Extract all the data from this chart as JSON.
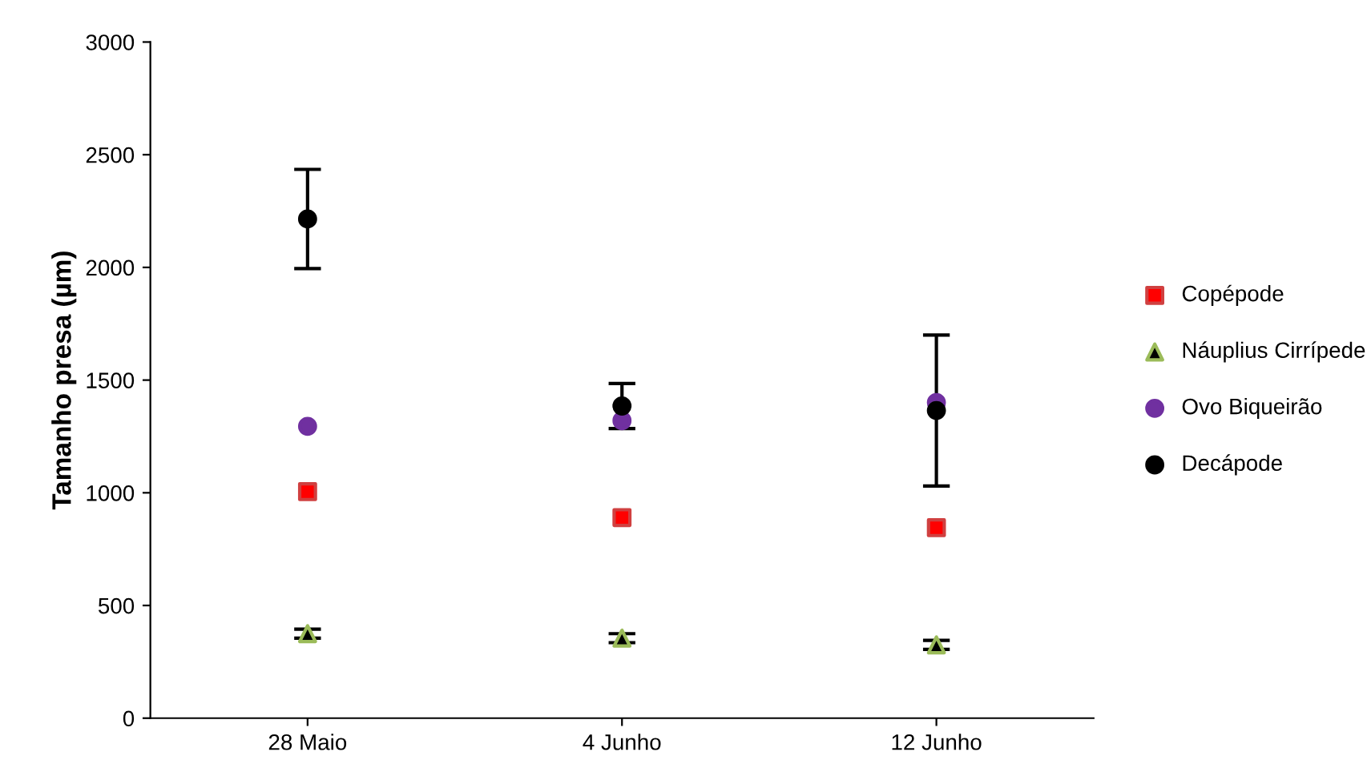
{
  "chart_data": {
    "type": "scatter",
    "ylabel": "Tamanho presa (µm)",
    "categories": [
      "28 Maio",
      "4 Junho",
      "12 Junho"
    ],
    "ylim": [
      0,
      3000
    ],
    "yticks": [
      0,
      500,
      1000,
      1500,
      2000,
      2500,
      3000
    ],
    "grid": false,
    "legend": "right",
    "series": [
      {
        "name": "Copépode",
        "color": "#ff0000",
        "marker": "square",
        "values": [
          1005,
          890,
          845
        ]
      },
      {
        "name": "Náuplius Cirrípede",
        "color": "#000000",
        "marker": "triangle",
        "values": [
          375,
          355,
          325
        ],
        "errors": [
          20,
          20,
          20
        ]
      },
      {
        "name": "Ovo Biqueirão",
        "color": "#7030a0",
        "marker": "circle",
        "values": [
          1295,
          1320,
          1400
        ]
      },
      {
        "name": "Decápode",
        "color": "#000000",
        "marker": "circle",
        "values": [
          2215,
          1385,
          1365
        ],
        "errors": [
          220,
          100,
          335
        ]
      }
    ]
  }
}
